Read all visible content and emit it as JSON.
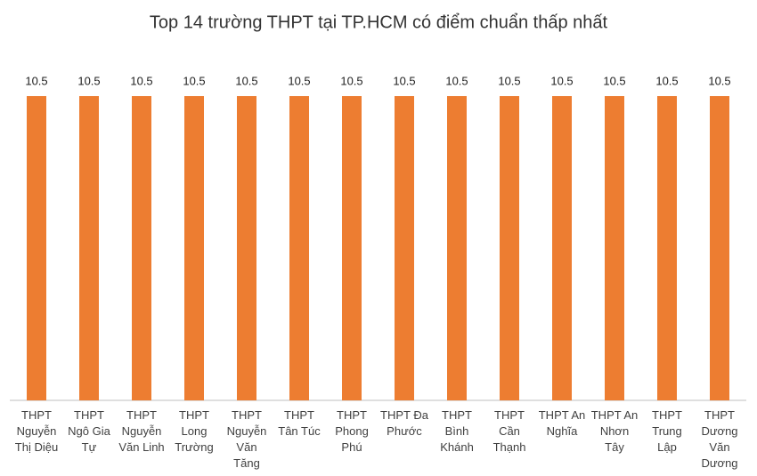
{
  "chart_data": {
    "type": "bar",
    "title": "Top 14 trường THPT tại TP.HCM có điểm chuẩn thấp nhất",
    "categories": [
      "THPT Nguyễn Thị Diệu",
      "THPT Ngô Gia Tự",
      "THPT Nguyễn Văn Linh",
      "THPT Long Trường",
      "THPT Nguyễn Văn Tăng",
      "THPT Tân Túc",
      "THPT Phong Phú",
      "THPT Đa Phước",
      "THPT Bình Khánh",
      "THPT Cần Thạnh",
      "THPT An Nghĩa",
      "THPT An Nhơn Tây",
      "THPT Trung Lập",
      "THPT Dương Văn Dương"
    ],
    "values": [
      10.5,
      10.5,
      10.5,
      10.5,
      10.5,
      10.5,
      10.5,
      10.5,
      10.5,
      10.5,
      10.5,
      10.5,
      10.5,
      10.5
    ],
    "color": "#ed7d31",
    "ylim": [
      0,
      10.5
    ],
    "grid": false
  }
}
